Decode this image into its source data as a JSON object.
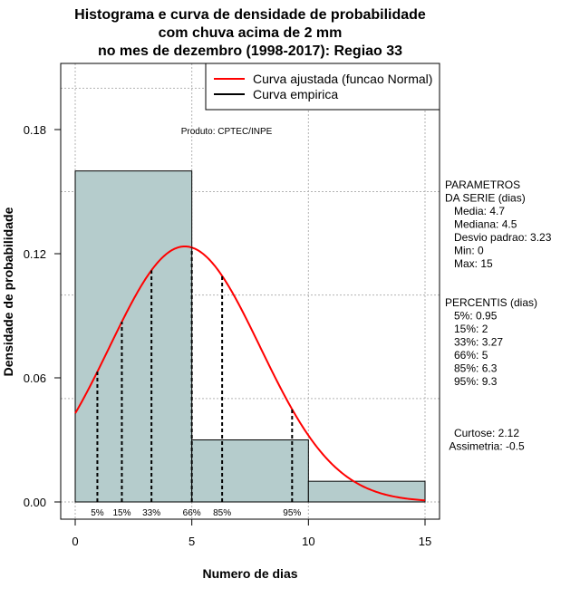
{
  "chart_data": {
    "type": "histogram",
    "title": [
      "Histograma e curva de densidade de probabilidade",
      "com chuva acima de 2 mm",
      "no mes de dezembro (1998-2017): Regiao 33"
    ],
    "xlabel": "Numero de dias",
    "ylabel": "Densidade de probabilidade",
    "xlim": [
      0,
      15
    ],
    "ylim": [
      0,
      0.2
    ],
    "xticks": [
      "0",
      "5",
      "10",
      "15"
    ],
    "yticks": [
      "0.00",
      "0.06",
      "0.12",
      "0.18"
    ],
    "bins": [
      {
        "start": 0,
        "end": 5,
        "density": 0.16
      },
      {
        "start": 5,
        "end": 10,
        "density": 0.03
      },
      {
        "start": 10,
        "end": 15,
        "density": 0.01
      }
    ],
    "fitted_curve": {
      "distribution": "Normal",
      "mean": 4.7,
      "sd": 3.23
    },
    "percentile_lines": [
      {
        "label": "5%",
        "x": 0.95
      },
      {
        "label": "15%",
        "x": 2
      },
      {
        "label": "33%",
        "x": 3.27
      },
      {
        "label": "66%",
        "x": 5
      },
      {
        "label": "85%",
        "x": 6.3
      },
      {
        "label": "95%",
        "x": 9.3
      }
    ],
    "legend": {
      "position": "top-right",
      "entries": [
        {
          "label": "Curva ajustada (funcao Normal)",
          "color": "#ff0000"
        },
        {
          "label": "Curva empirica",
          "color": "#000000"
        }
      ]
    },
    "annotation": "Produto: CPTEC/INPE",
    "grid": true,
    "bar_color": "#b5cccc",
    "curve_color": "#ff0000"
  },
  "side_panel": {
    "parametros": [
      "PARAMETROS",
      "DA SERIE (dias)",
      "   Media: 4.7",
      "   Mediana: 4.5",
      "   Desvio padrao: 3.23",
      "   Min: 0",
      "   Max: 15"
    ],
    "percentis": [
      "PERCENTIS (dias)",
      "   5%: 0.95",
      "   15%: 2",
      "   33%: 3.27",
      "   66%: 5",
      "   85%: 6.3",
      "   95%: 9.3"
    ],
    "shape": [
      "Curtose: 2.12",
      "Assimetria: -0.5"
    ]
  }
}
